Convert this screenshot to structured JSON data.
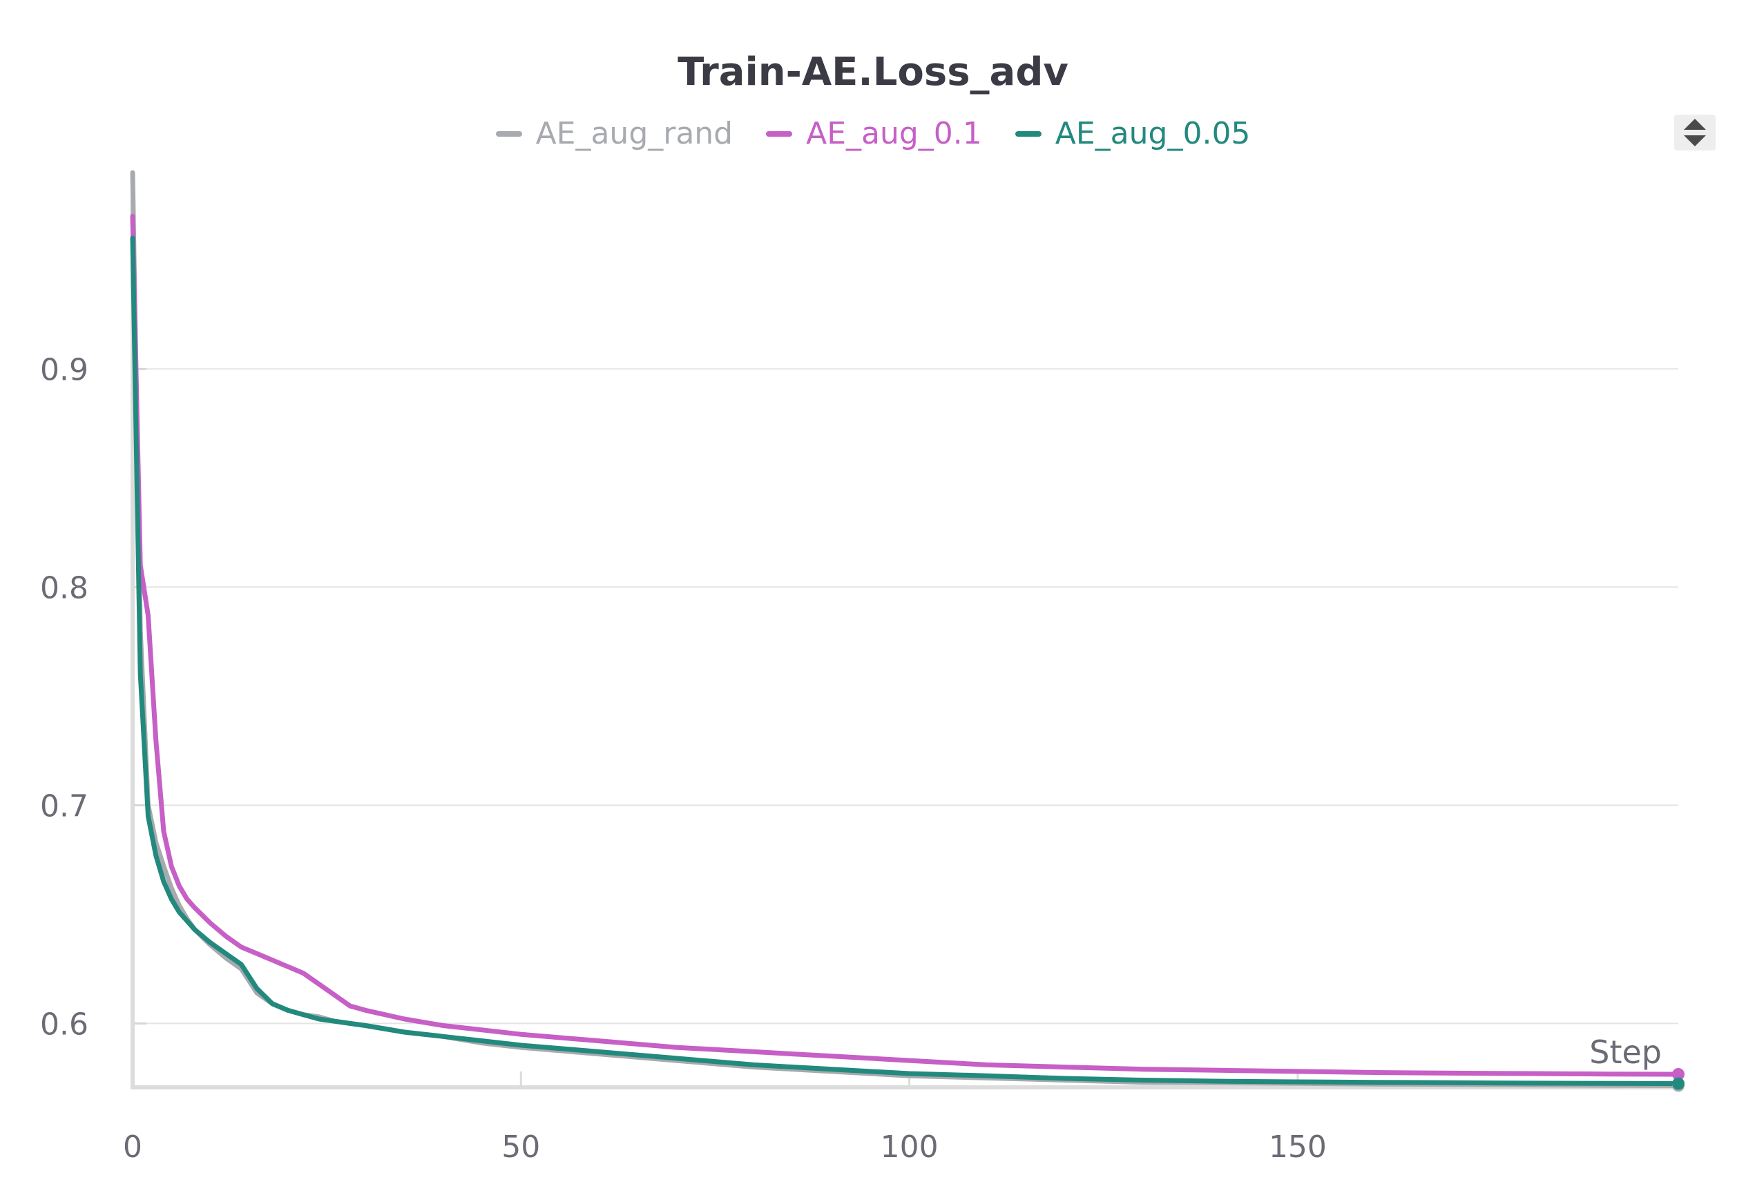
{
  "chart_data": {
    "type": "line",
    "title": "Train-AE.Loss_adv",
    "xlabel": "Step",
    "ylabel": "",
    "xlim": [
      0,
      199
    ],
    "ylim": [
      0.571,
      0.99
    ],
    "x_ticks": [
      "0",
      "50",
      "100",
      "150"
    ],
    "y_ticks": [
      "0.6",
      "0.7",
      "0.8",
      "0.9"
    ],
    "grid": true,
    "legend_position": "top-center",
    "series": [
      {
        "name": "AE_aug_rand",
        "color": "#a7aaae",
        "x": [
          0,
          1,
          2,
          3,
          4,
          5,
          6,
          7,
          8,
          10,
          12,
          14,
          16,
          18,
          20,
          22,
          24,
          26,
          28,
          30,
          35,
          40,
          45,
          50,
          60,
          70,
          80,
          90,
          100,
          110,
          120,
          130,
          140,
          150,
          160,
          170,
          180,
          190,
          199
        ],
        "y": [
          0.99,
          0.78,
          0.7,
          0.683,
          0.672,
          0.662,
          0.654,
          0.648,
          0.643,
          0.636,
          0.63,
          0.625,
          0.614,
          0.609,
          0.606,
          0.604,
          0.603,
          0.601,
          0.6,
          0.599,
          0.596,
          0.594,
          0.591,
          0.589,
          0.586,
          0.583,
          0.58,
          0.578,
          0.576,
          0.575,
          0.574,
          0.573,
          0.5728,
          0.5725,
          0.5722,
          0.572,
          0.5718,
          0.5716,
          0.5715
        ]
      },
      {
        "name": "AE_aug_0.1",
        "color": "#c65fc6",
        "x": [
          0,
          1,
          2,
          3,
          4,
          5,
          6,
          7,
          8,
          10,
          12,
          14,
          16,
          18,
          20,
          22,
          24,
          26,
          28,
          30,
          35,
          40,
          45,
          50,
          60,
          70,
          80,
          90,
          100,
          110,
          120,
          130,
          140,
          150,
          160,
          170,
          180,
          190,
          199
        ],
        "y": [
          0.97,
          0.81,
          0.787,
          0.73,
          0.688,
          0.672,
          0.663,
          0.657,
          0.653,
          0.646,
          0.64,
          0.635,
          0.632,
          0.629,
          0.626,
          0.623,
          0.618,
          0.613,
          0.608,
          0.606,
          0.602,
          0.599,
          0.597,
          0.595,
          0.592,
          0.589,
          0.587,
          0.585,
          0.583,
          0.581,
          0.58,
          0.579,
          0.5785,
          0.578,
          0.5775,
          0.5772,
          0.577,
          0.5768,
          0.5767
        ]
      },
      {
        "name": "AE_aug_0.05",
        "color": "#22897d",
        "x": [
          0,
          1,
          2,
          3,
          4,
          5,
          6,
          7,
          8,
          10,
          12,
          14,
          16,
          18,
          20,
          22,
          24,
          26,
          28,
          30,
          35,
          40,
          45,
          50,
          60,
          70,
          80,
          90,
          100,
          110,
          120,
          130,
          140,
          150,
          160,
          170,
          180,
          190,
          199
        ],
        "y": [
          0.96,
          0.76,
          0.695,
          0.677,
          0.665,
          0.657,
          0.651,
          0.647,
          0.643,
          0.637,
          0.632,
          0.627,
          0.616,
          0.609,
          0.606,
          0.604,
          0.602,
          0.601,
          0.6,
          0.599,
          0.596,
          0.594,
          0.592,
          0.59,
          0.587,
          0.584,
          0.581,
          0.579,
          0.577,
          0.576,
          0.5748,
          0.574,
          0.5735,
          0.5732,
          0.573,
          0.5728,
          0.5726,
          0.5725,
          0.5724
        ]
      }
    ]
  }
}
